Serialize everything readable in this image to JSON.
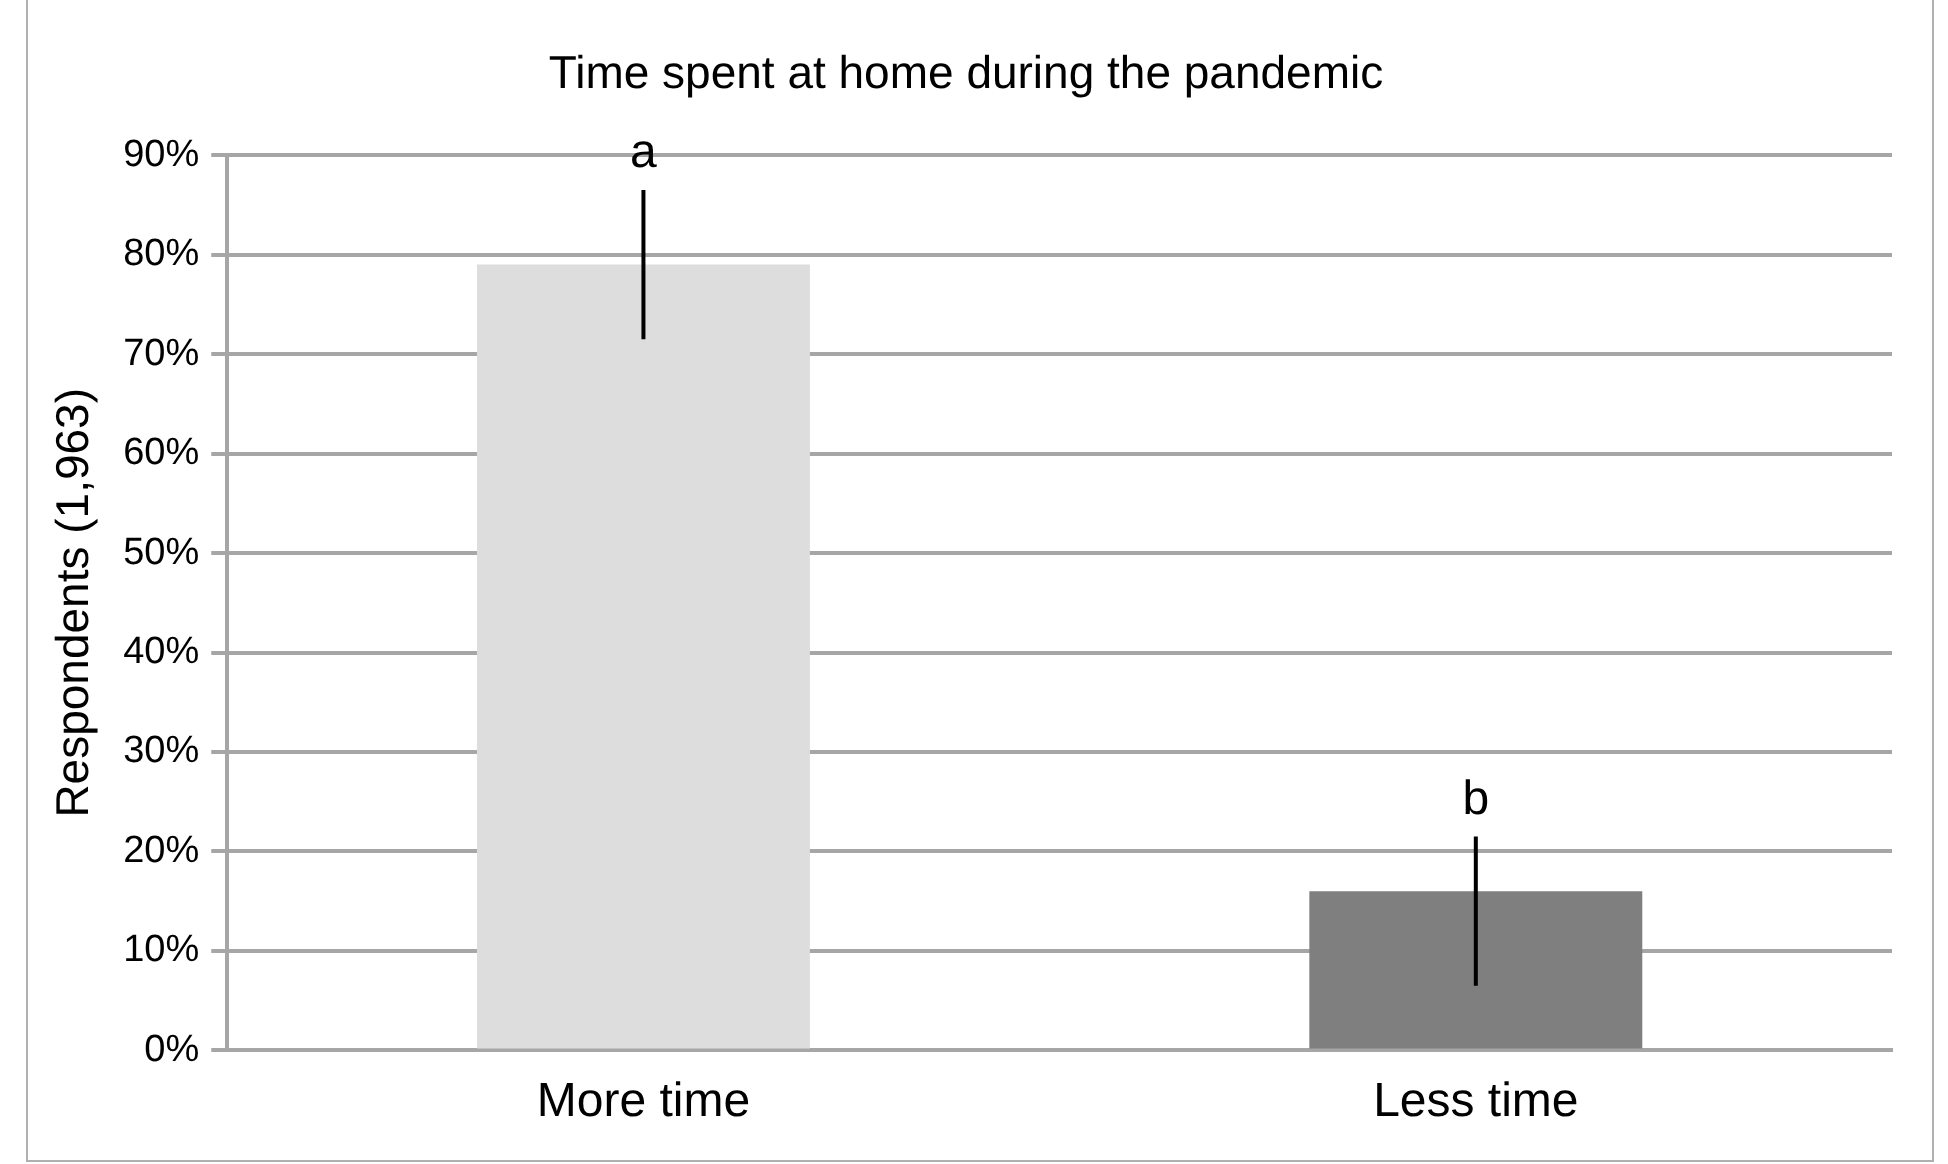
{
  "chart_data": {
    "type": "bar",
    "title": "Time spent at home during the pandemic",
    "ylabel": "Respondents (1,963)",
    "categories": [
      "More time",
      "Less time"
    ],
    "values": [
      79,
      16
    ],
    "colors": [
      "#dddddd",
      "#7f7f7f"
    ],
    "errors": [
      [
        71.5,
        86.5
      ],
      [
        6.5,
        21.5
      ]
    ],
    "annotations": [
      {
        "text": "a",
        "x": "More time",
        "y": 86.5
      },
      {
        "text": "b",
        "x": "Less time",
        "y": 21.5
      }
    ],
    "ylim": [
      0,
      90
    ],
    "yticks": [
      {
        "value": 0,
        "label": "0%"
      },
      {
        "value": 10,
        "label": "10%"
      },
      {
        "value": 20,
        "label": "20%"
      },
      {
        "value": 30,
        "label": "30%"
      },
      {
        "value": 40,
        "label": "40%"
      },
      {
        "value": 50,
        "label": "50%"
      },
      {
        "value": 60,
        "label": "60%"
      },
      {
        "value": 70,
        "label": "70%"
      },
      {
        "value": 80,
        "label": "80%"
      },
      {
        "value": 90,
        "label": "90%"
      }
    ],
    "grid": "y",
    "legend": false
  }
}
